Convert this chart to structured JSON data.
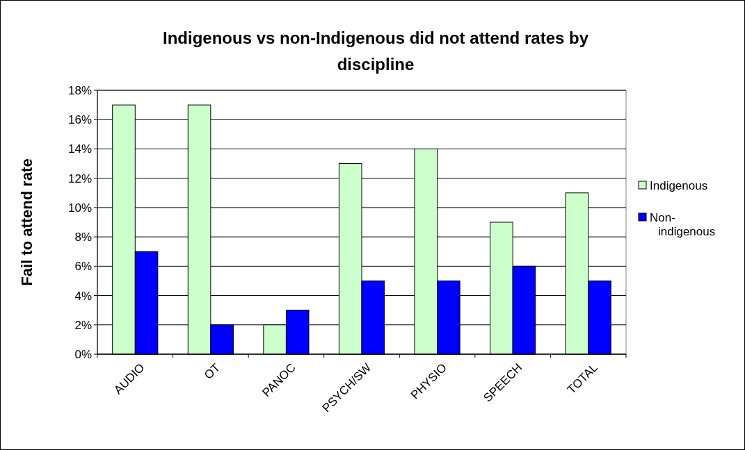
{
  "chart_data": {
    "type": "bar",
    "title": "Indigenous vs non-Indigenous did not attend rates by discipline",
    "ylabel": "Fail to attend rate",
    "categories": [
      "AUDIO",
      "OT",
      "PANOC",
      "PSYCH/SW",
      "PHYSIO",
      "SPEECH",
      "TOTAL"
    ],
    "series": [
      {
        "name": "Indigenous",
        "color": "#ccffcc",
        "values": [
          17,
          17,
          2,
          13,
          14,
          9,
          11
        ]
      },
      {
        "name": "Non-indigenous",
        "color": "#0000ff",
        "values": [
          7,
          2,
          3,
          5,
          5,
          6,
          5
        ]
      }
    ],
    "ylim": [
      0,
      18
    ],
    "yticks": [
      {
        "value": 0,
        "label": "0%"
      },
      {
        "value": 2,
        "label": "2%"
      },
      {
        "value": 4,
        "label": "4%"
      },
      {
        "value": 6,
        "label": "6%"
      },
      {
        "value": 8,
        "label": "8%"
      },
      {
        "value": 10,
        "label": "10%"
      },
      {
        "value": 12,
        "label": "12%"
      },
      {
        "value": 14,
        "label": "14%"
      },
      {
        "value": 16,
        "label": "16%"
      },
      {
        "value": 18,
        "label": "18%"
      }
    ],
    "grid": "y",
    "legend": "right"
  }
}
